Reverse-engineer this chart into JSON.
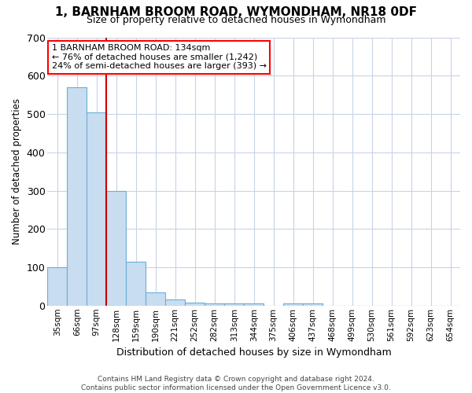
{
  "title1": "1, BARNHAM BROOM ROAD, WYMONDHAM, NR18 0DF",
  "title2": "Size of property relative to detached houses in Wymondham",
  "xlabel": "Distribution of detached houses by size in Wymondham",
  "ylabel": "Number of detached properties",
  "categories": [
    "35sqm",
    "66sqm",
    "97sqm",
    "128sqm",
    "159sqm",
    "190sqm",
    "221sqm",
    "252sqm",
    "282sqm",
    "313sqm",
    "344sqm",
    "375sqm",
    "406sqm",
    "437sqm",
    "468sqm",
    "499sqm",
    "530sqm",
    "561sqm",
    "592sqm",
    "623sqm",
    "654sqm"
  ],
  "values": [
    100,
    570,
    505,
    300,
    115,
    35,
    15,
    8,
    5,
    5,
    5,
    0,
    6,
    5,
    0,
    0,
    0,
    0,
    0,
    0,
    0
  ],
  "bar_color": "#c9ddf0",
  "bar_edge_color": "#6baed6",
  "property_label": "1 BARNHAM BROOM ROAD: 134sqm",
  "annotation_line1": "← 76% of detached houses are smaller (1,242)",
  "annotation_line2": "24% of semi-detached houses are larger (393) →",
  "vline_color": "#cc0000",
  "vline_x_index": 2.5,
  "ylim": [
    0,
    700
  ],
  "yticks": [
    0,
    100,
    200,
    300,
    400,
    500,
    600,
    700
  ],
  "footnote1": "Contains HM Land Registry data © Crown copyright and database right 2024.",
  "footnote2": "Contains public sector information licensed under the Open Government Licence v3.0.",
  "background_color": "#ffffff",
  "grid_color": "#c8d4e8",
  "title1_fontsize": 11,
  "title2_fontsize": 9
}
